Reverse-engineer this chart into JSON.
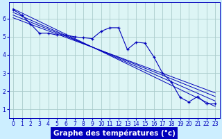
{
  "xlabel": "Graphe des températures (°c)",
  "background_color": "#cceeff",
  "plot_bg_color": "#ddf5f5",
  "grid_color": "#aacccc",
  "line_color": "#0000bb",
  "axis_color": "#0000bb",
  "xlabel_bg": "#0000bb",
  "xlabel_fg": "#ffffff",
  "x_ticks": [
    0,
    1,
    2,
    3,
    4,
    5,
    6,
    7,
    8,
    9,
    10,
    11,
    12,
    13,
    14,
    15,
    16,
    17,
    18,
    19,
    20,
    21,
    22,
    23
  ],
  "y_ticks": [
    1,
    2,
    3,
    4,
    5,
    6
  ],
  "ylim": [
    0.5,
    6.9
  ],
  "xlim": [
    -0.5,
    23.5
  ],
  "data_line": [
    6.5,
    6.2,
    5.7,
    5.2,
    5.2,
    5.1,
    5.1,
    5.0,
    4.95,
    4.9,
    5.3,
    5.5,
    5.5,
    4.3,
    4.7,
    4.65,
    3.9,
    3.0,
    2.5,
    1.65,
    1.4,
    1.7,
    1.3,
    1.3
  ],
  "regression_lines": [
    [
      0,
      6.55,
      23,
      1.15
    ],
    [
      0,
      6.35,
      23,
      1.45
    ],
    [
      0,
      6.2,
      23,
      1.7
    ],
    [
      0,
      6.05,
      23,
      1.9
    ]
  ],
  "tick_fontsize": 5.5,
  "label_fontsize": 7.5
}
